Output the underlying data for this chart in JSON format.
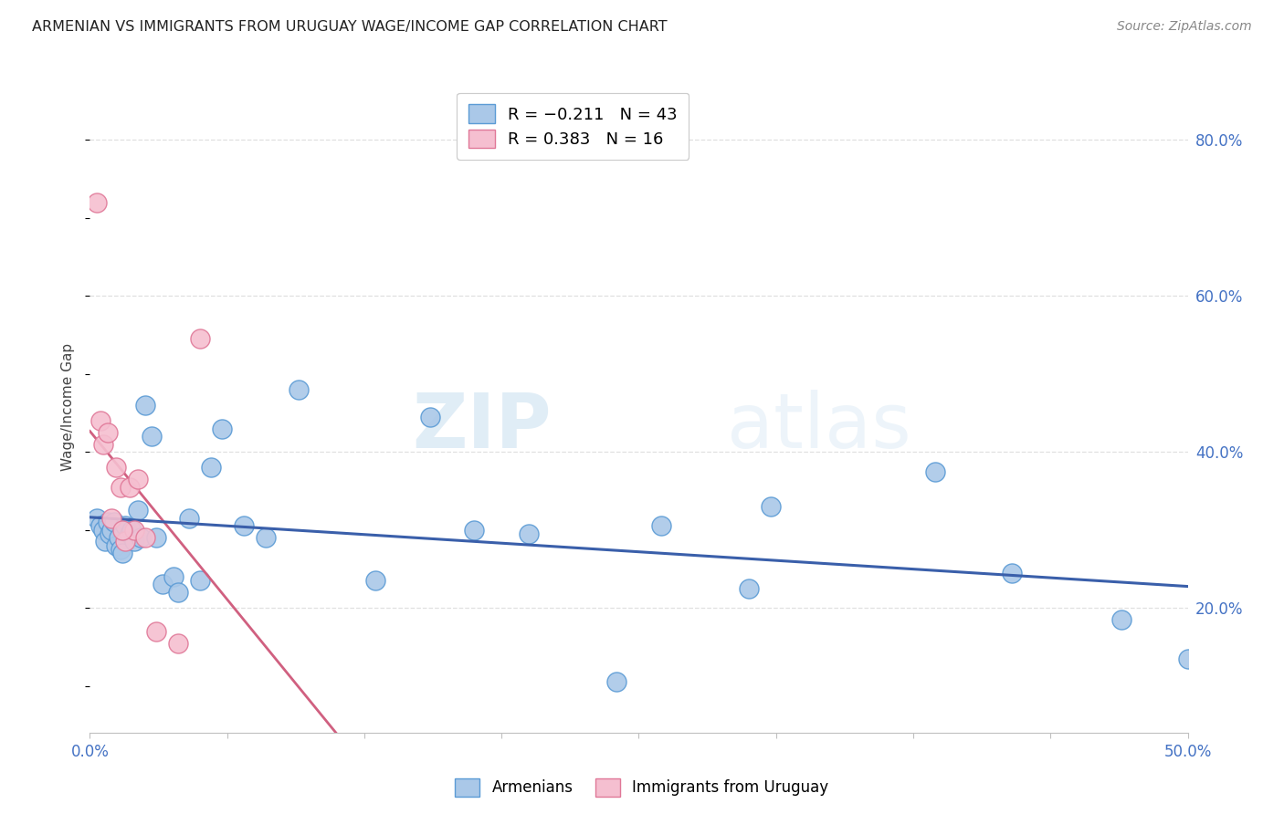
{
  "title": "ARMENIAN VS IMMIGRANTS FROM URUGUAY WAGE/INCOME GAP CORRELATION CHART",
  "source": "Source: ZipAtlas.com",
  "ylabel": "Wage/Income Gap",
  "watermark_zip": "ZIP",
  "watermark_atlas": "atlas",
  "xmin": 0.0,
  "xmax": 0.5,
  "ymin": 0.04,
  "ymax": 0.875,
  "yticks": [
    0.2,
    0.4,
    0.6,
    0.8
  ],
  "xticks": [
    0.0,
    0.0625,
    0.125,
    0.1875,
    0.25,
    0.3125,
    0.375,
    0.4375,
    0.5
  ],
  "armenian_color": "#aac8e8",
  "armenian_edge": "#5b9bd5",
  "uruguay_color": "#f5bfd0",
  "uruguay_edge": "#e07898",
  "blue_line_color": "#3a5faa",
  "pink_line_color": "#d06080",
  "pink_dash_color": "#e0a0b0",
  "grid_color": "#e0e0e0",
  "armenian_x": [
    0.003,
    0.005,
    0.006,
    0.007,
    0.008,
    0.009,
    0.01,
    0.011,
    0.012,
    0.013,
    0.014,
    0.015,
    0.016,
    0.018,
    0.019,
    0.02,
    0.022,
    0.023,
    0.025,
    0.028,
    0.03,
    0.033,
    0.038,
    0.04,
    0.045,
    0.05,
    0.055,
    0.06,
    0.07,
    0.08,
    0.095,
    0.13,
    0.155,
    0.175,
    0.2,
    0.24,
    0.26,
    0.3,
    0.31,
    0.385,
    0.42,
    0.47,
    0.5
  ],
  "armenian_y": [
    0.315,
    0.305,
    0.3,
    0.285,
    0.31,
    0.295,
    0.3,
    0.31,
    0.28,
    0.29,
    0.275,
    0.27,
    0.305,
    0.295,
    0.3,
    0.285,
    0.325,
    0.29,
    0.46,
    0.42,
    0.29,
    0.23,
    0.24,
    0.22,
    0.315,
    0.235,
    0.38,
    0.43,
    0.305,
    0.29,
    0.48,
    0.235,
    0.445,
    0.3,
    0.295,
    0.105,
    0.305,
    0.225,
    0.33,
    0.375,
    0.245,
    0.185,
    0.135
  ],
  "uruguay_x": [
    0.003,
    0.005,
    0.006,
    0.008,
    0.01,
    0.012,
    0.014,
    0.016,
    0.018,
    0.02,
    0.022,
    0.025,
    0.03,
    0.05,
    0.015,
    0.04
  ],
  "uruguay_y": [
    0.72,
    0.44,
    0.41,
    0.425,
    0.315,
    0.38,
    0.355,
    0.285,
    0.355,
    0.3,
    0.365,
    0.29,
    0.17,
    0.545,
    0.3,
    0.155
  ]
}
